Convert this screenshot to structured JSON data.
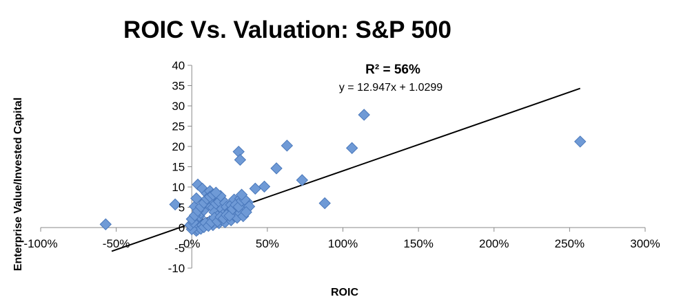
{
  "chart_data": {
    "type": "scatter",
    "title": "ROIC Vs. Valuation: S&P 500",
    "xlabel": "ROIC",
    "ylabel": "Enterprise Value/Invested Capital",
    "xlim": [
      -1.0,
      3.0
    ],
    "ylim": [
      -10,
      40
    ],
    "x_ticks": [
      -1.0,
      -0.5,
      0.0,
      0.5,
      1.0,
      1.5,
      2.0,
      2.5,
      3.0
    ],
    "x_tick_labels": [
      "-100%",
      "-50%",
      "0%",
      "50%",
      "100%",
      "150%",
      "200%",
      "250%",
      "300%"
    ],
    "y_ticks": [
      -10,
      -5,
      0,
      5,
      10,
      15,
      20,
      25,
      30,
      35,
      40
    ],
    "y_tick_labels": [
      "-10",
      "-5",
      "0",
      "5",
      "10",
      "15",
      "20",
      "25",
      "30",
      "35",
      "40"
    ],
    "annotations": {
      "r_squared": "R² = 56%",
      "equation": "y = 12.947x + 1.0299"
    },
    "trendline": {
      "slope": 12.947,
      "intercept": 1.0299,
      "x_range": [
        -0.53,
        2.57
      ],
      "color": "#000000"
    },
    "marker_color": "#6f9ad6",
    "marker_edge_color": "#4a78bb",
    "grid": false,
    "legend": "none",
    "series": [
      {
        "points": [
          [
            -0.57,
            0.8
          ],
          [
            -0.11,
            5.7
          ],
          [
            0.04,
            10.6
          ],
          [
            0.07,
            9.6
          ],
          [
            0.1,
            8.4
          ],
          [
            0.12,
            9.0
          ],
          [
            0.0,
            1.0
          ],
          [
            0.02,
            1.6
          ],
          [
            0.03,
            2.3
          ],
          [
            0.05,
            2.8
          ],
          [
            0.06,
            3.6
          ],
          [
            0.08,
            4.3
          ],
          [
            0.02,
            5.2
          ],
          [
            0.03,
            7.2
          ],
          [
            0.09,
            6.6
          ],
          [
            0.11,
            5.6
          ],
          [
            0.13,
            6.9
          ],
          [
            0.14,
            4.9
          ],
          [
            0.15,
            3.8
          ],
          [
            0.16,
            5.9
          ],
          [
            0.17,
            2.8
          ],
          [
            0.18,
            6.4
          ],
          [
            0.19,
            7.8
          ],
          [
            0.2,
            4.6
          ],
          [
            0.21,
            3.3
          ],
          [
            0.22,
            6.1
          ],
          [
            0.23,
            5.1
          ],
          [
            0.24,
            2.3
          ],
          [
            0.25,
            4.1
          ],
          [
            0.26,
            5.6
          ],
          [
            0.27,
            3.6
          ],
          [
            0.28,
            6.9
          ],
          [
            0.29,
            3.9
          ],
          [
            0.3,
            4.4
          ],
          [
            0.31,
            5.9
          ],
          [
            0.32,
            7.1
          ],
          [
            0.33,
            3.3
          ],
          [
            0.34,
            4.9
          ],
          [
            0.35,
            5.6
          ],
          [
            0.36,
            4.4
          ],
          [
            0.37,
            6.2
          ],
          [
            0.38,
            5.2
          ],
          [
            0.1,
            0.8
          ],
          [
            0.12,
            1.6
          ],
          [
            0.14,
            0.6
          ],
          [
            0.16,
            2.0
          ],
          [
            0.18,
            1.1
          ],
          [
            0.2,
            1.9
          ],
          [
            0.22,
            1.3
          ],
          [
            0.24,
            2.6
          ],
          [
            0.26,
            1.8
          ],
          [
            0.28,
            2.9
          ],
          [
            0.3,
            2.4
          ],
          [
            0.32,
            3.6
          ],
          [
            0.34,
            2.8
          ],
          [
            0.36,
            3.8
          ],
          [
            0.01,
            0.3
          ],
          [
            0.02,
            -0.4
          ],
          [
            0.03,
            -0.8
          ],
          [
            0.04,
            -0.5
          ],
          [
            0.05,
            0.2
          ],
          [
            0.06,
            -0.3
          ],
          [
            0.07,
            0.6
          ],
          [
            0.08,
            0.1
          ],
          [
            0.09,
            1.2
          ],
          [
            0.11,
            0.4
          ],
          [
            0.13,
            1.3
          ],
          [
            0.15,
            2.4
          ],
          [
            0.17,
            1.5
          ],
          [
            0.19,
            2.6
          ],
          [
            0.21,
            2.2
          ],
          [
            0.23,
            3.1
          ],
          [
            0.25,
            2.9
          ],
          [
            0.27,
            4.6
          ],
          [
            0.29,
            5.6
          ],
          [
            0.31,
            5.1
          ],
          [
            0.33,
            6.6
          ],
          [
            0.35,
            6.9
          ],
          [
            0.0,
            -0.4
          ],
          [
            -0.01,
            0.6
          ],
          [
            0.01,
            1.3
          ],
          [
            0.0,
            2.1
          ],
          [
            0.02,
            3.0
          ],
          [
            0.04,
            4.1
          ],
          [
            0.06,
            5.1
          ],
          [
            0.08,
            6.1
          ],
          [
            0.1,
            7.1
          ],
          [
            0.12,
            7.6
          ],
          [
            0.14,
            8.1
          ],
          [
            0.16,
            8.6
          ],
          [
            0.31,
            18.7
          ],
          [
            0.32,
            16.7
          ],
          [
            0.33,
            8.1
          ],
          [
            0.42,
            9.6
          ],
          [
            0.48,
            10.1
          ],
          [
            0.56,
            14.6
          ],
          [
            0.63,
            20.2
          ],
          [
            0.73,
            11.7
          ],
          [
            0.88,
            6.0
          ],
          [
            1.06,
            19.6
          ],
          [
            1.14,
            27.8
          ],
          [
            2.57,
            21.2
          ]
        ]
      }
    ]
  }
}
